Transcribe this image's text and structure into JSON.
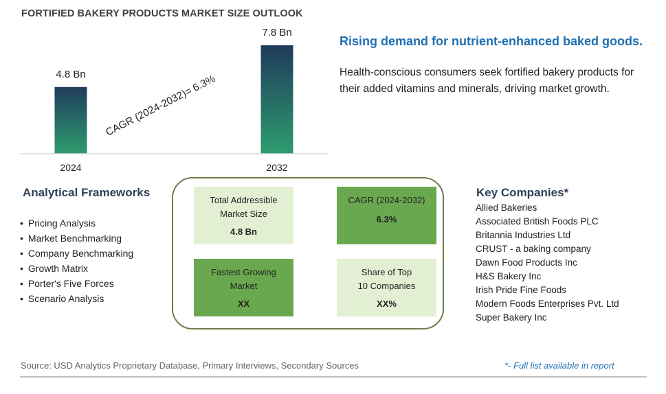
{
  "title": "FORTIFIED BAKERY PRODUCTS MARKET SIZE OUTLOOK",
  "chart_data": {
    "type": "bar",
    "categories": [
      "2024",
      "2032"
    ],
    "values": [
      4.8,
      7.8
    ],
    "data_labels": [
      "4.8 Bn",
      "7.8 Bn"
    ],
    "annotation": "CAGR (2024-2032)=  6.3%",
    "colors": {
      "bar_top": "#1f3b5c",
      "bar_bottom": "#2e9c6e"
    }
  },
  "headline": "Rising demand for nutrient-enhanced baked goods.",
  "description": "Health-conscious consumers seek fortified bakery products for their added vitamins and minerals, driving market growth.",
  "frameworks": {
    "title": "Analytical Frameworks",
    "items": [
      "Pricing Analysis",
      "Market Benchmarking",
      "Company Benchmarking",
      "Growth Matrix",
      "Porter's Five Forces",
      "Scenario Analysis"
    ]
  },
  "tiles": [
    {
      "label": "Total Addressible Market Size",
      "value": "4.8 Bn"
    },
    {
      "label": "CAGR (2024-2032)",
      "value": "6.3%"
    },
    {
      "label": "Fastest Growing Market",
      "value": "XX"
    },
    {
      "label": "Share of Top 10 Companies",
      "value": "XX%"
    }
  ],
  "key_companies": {
    "title": "Key Companies*",
    "items": [
      "Allied Bakeries",
      "Associated British Foods PLC",
      "Britannia Industries Ltd",
      "CRUST - a baking company",
      "Dawn Food Products Inc",
      "H&S Bakery Inc",
      "Irish Pride Fine Foods",
      "Modern Foods Enterprises Pvt. Ltd",
      "Super Bakery Inc"
    ]
  },
  "footer": {
    "source": "Source: USD Analytics Proprietary Database, Primary Interviews, Secondary Sources",
    "note": "*- Full list available in report"
  },
  "colors": {
    "accent": "#1f6fb2",
    "tile_light": "#e2efd3",
    "tile_dark": "#6aa84f",
    "box_border": "#6e7d4b"
  }
}
